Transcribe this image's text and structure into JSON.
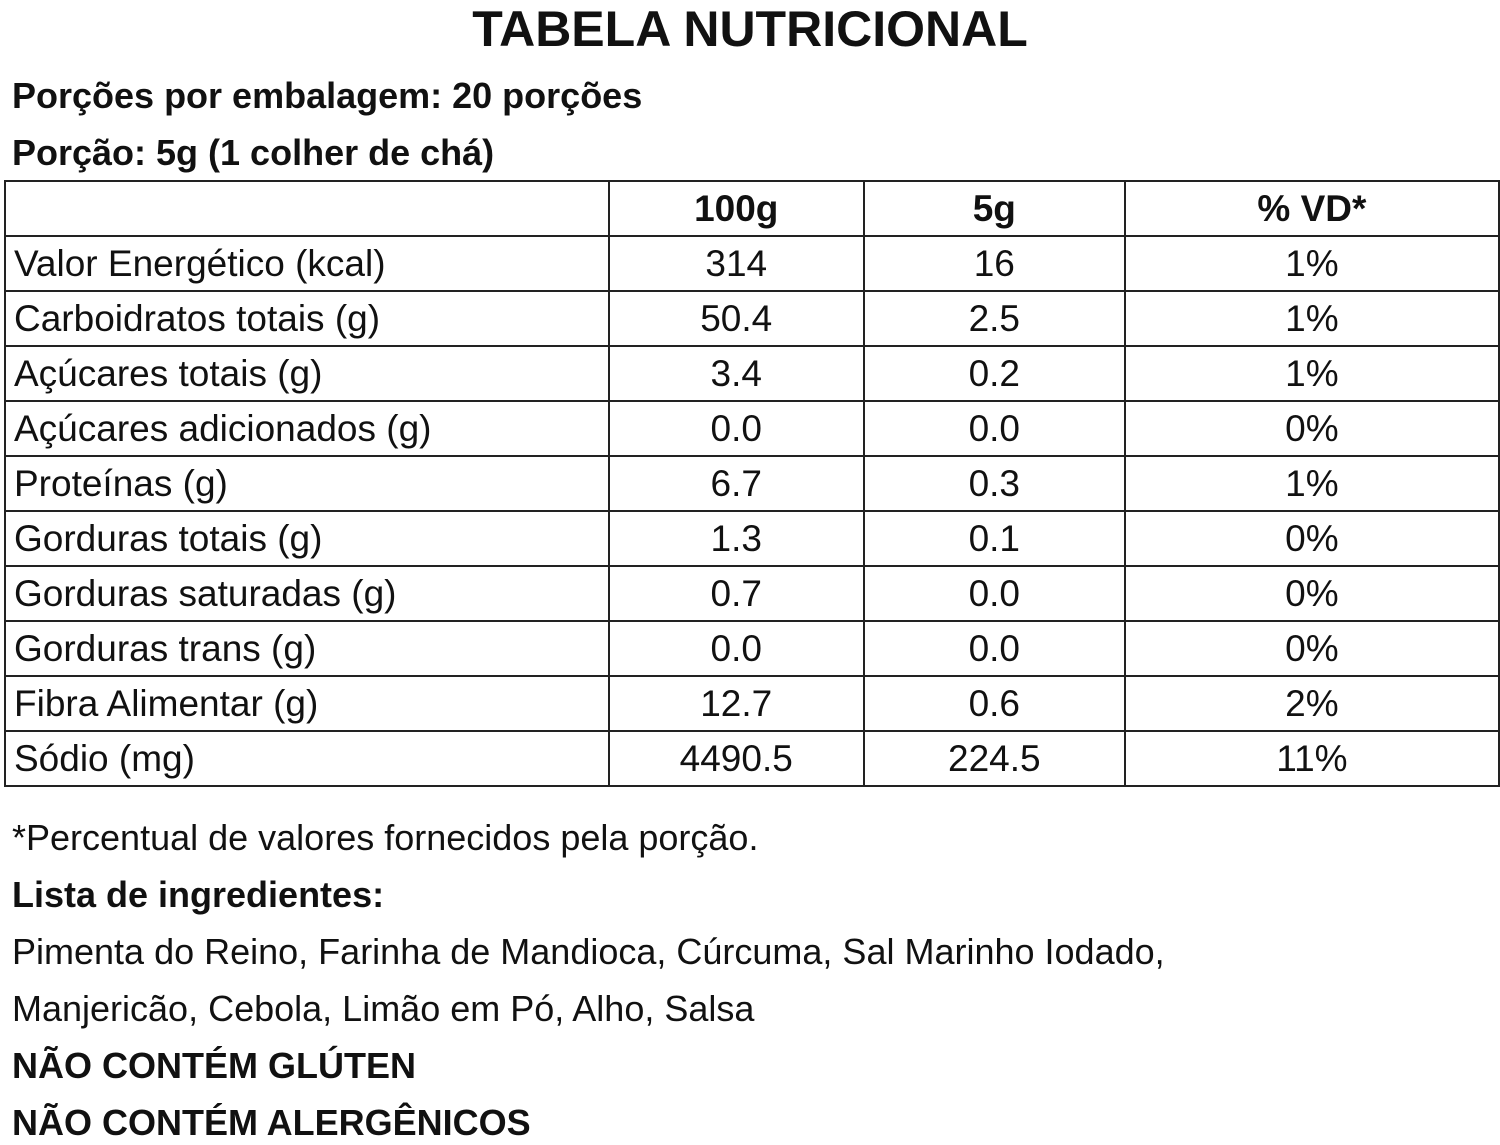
{
  "header": {
    "title": "TABELA NUTRICIONAL",
    "servings": "Porções por embalagem: 20  porções",
    "portion": "Porção: 5g (1 colher de chá)"
  },
  "table": {
    "columns": [
      "",
      "100g",
      "5g",
      "% VD*"
    ],
    "rows": [
      [
        "Valor Energético (kcal)",
        "314",
        "16",
        "1%"
      ],
      [
        "Carboidratos totais (g)",
        "50.4",
        "2.5",
        "1%"
      ],
      [
        "Açúcares totais (g)",
        "3.4",
        "0.2",
        "1%"
      ],
      [
        "Açúcares adicionados (g)",
        "0.0",
        "0.0",
        "0%"
      ],
      [
        "Proteínas (g)",
        "6.7",
        "0.3",
        "1%"
      ],
      [
        "Gorduras totais (g)",
        "1.3",
        "0.1",
        "0%"
      ],
      [
        "Gorduras saturadas (g)",
        "0.7",
        "0.0",
        "0%"
      ],
      [
        "Gorduras trans (g)",
        "0.0",
        "0.0",
        "0%"
      ],
      [
        "Fibra Alimentar (g)",
        "12.7",
        "0.6",
        "2%"
      ],
      [
        "Sódio (mg)",
        "4490.5",
        "224.5",
        "11%"
      ]
    ]
  },
  "footnote": "*Percentual de valores fornecidos pela porção.",
  "ingredients": {
    "heading": "Lista de ingredientes:",
    "lines": [
      "Pimenta do Reino, Farinha de Mandioca, Cúrcuma, Sal Marinho Iodado,",
      "Manjericão, Cebola, Limão em Pó, Alho, Salsa"
    ]
  },
  "notices": [
    "NÃO CONTÉM GLÚTEN",
    "NÃO CONTÉM ALERGÊNICOS"
  ]
}
